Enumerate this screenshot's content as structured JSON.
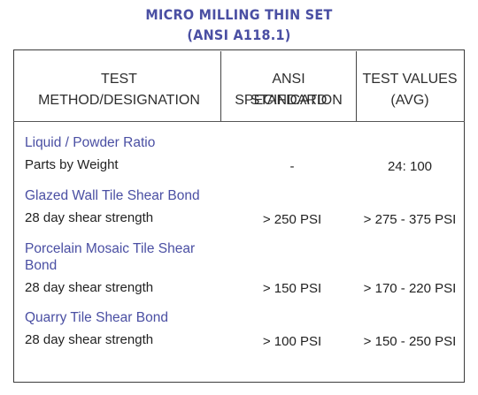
{
  "title": {
    "line1": "MICRO MILLING THIN SET",
    "line2": "(ANSI A118.1)"
  },
  "columns": {
    "method": "TEST METHOD/DESIGNATION",
    "ansi_line1": "ANSI SPECIFICATION",
    "ansi_line2": "STANDARD",
    "values_line1": "TEST VALUES",
    "values_line2": "(AVG)"
  },
  "rows": [
    {
      "section": "Liquid / Powder Ratio",
      "label": "Parts by Weight",
      "ansi": "-",
      "value": "24: 100"
    },
    {
      "section": "Glazed Wall Tile Shear Bond",
      "label": "28 day shear strength",
      "ansi": "> 250 PSI",
      "value": "> 275 - 375 PSI"
    },
    {
      "section_line1": "Porcelain Mosaic Tile Shear",
      "section_line2": "Bond",
      "label": "28 day shear strength",
      "ansi": "> 150 PSI",
      "value": "> 170 - 220 PSI"
    },
    {
      "section": "Quarry Tile Shear Bond",
      "label": "28 day shear strength",
      "ansi": "> 100 PSI",
      "value": "> 150 - 250 PSI"
    }
  ],
  "colors": {
    "accent": "#4a4fa3",
    "text": "#222222",
    "border": "#3b3b3b"
  }
}
